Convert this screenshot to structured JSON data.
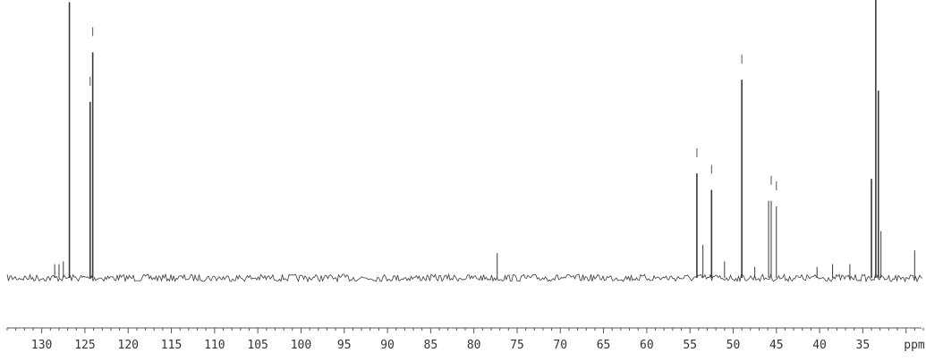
{
  "chart_data": {
    "type": "line",
    "title": "",
    "xlabel": "ppm",
    "ylabel": "",
    "x_axis": {
      "range": [
        134,
        28
      ],
      "reversed": true,
      "major_tick_step": 5,
      "minor_tick_step": 1
    },
    "tick_labels": [
      "130",
      "125",
      "120",
      "115",
      "110",
      "105",
      "100",
      "95",
      "90",
      "85",
      "80",
      "75",
      "70",
      "65",
      "60",
      "55",
      "50",
      "45",
      "40",
      "35"
    ],
    "tick_values": [
      130,
      125,
      120,
      115,
      110,
      105,
      100,
      95,
      90,
      85,
      80,
      75,
      70,
      65,
      60,
      55,
      50,
      45,
      40,
      35
    ],
    "unit_label": "ppm",
    "peak_markers": [
      126.8,
      124.1,
      124.4,
      54.2,
      52.5,
      49.0,
      45.6,
      45.0,
      33.5
    ],
    "peaks": [
      {
        "ppm": 126.8,
        "intensity": 1.0
      },
      {
        "ppm": 124.4,
        "intensity": 0.64
      },
      {
        "ppm": 124.1,
        "intensity": 0.82
      },
      {
        "ppm": 128.5,
        "intensity": 0.05
      },
      {
        "ppm": 128.0,
        "intensity": 0.05
      },
      {
        "ppm": 127.5,
        "intensity": 0.06
      },
      {
        "ppm": 77.3,
        "intensity": 0.09
      },
      {
        "ppm": 54.2,
        "intensity": 0.38
      },
      {
        "ppm": 53.5,
        "intensity": 0.12
      },
      {
        "ppm": 52.5,
        "intensity": 0.32
      },
      {
        "ppm": 51.0,
        "intensity": 0.06
      },
      {
        "ppm": 49.0,
        "intensity": 0.72
      },
      {
        "ppm": 47.5,
        "intensity": 0.04
      },
      {
        "ppm": 45.9,
        "intensity": 0.28
      },
      {
        "ppm": 45.6,
        "intensity": 0.28
      },
      {
        "ppm": 45.0,
        "intensity": 0.26
      },
      {
        "ppm": 40.3,
        "intensity": 0.04
      },
      {
        "ppm": 38.5,
        "intensity": 0.05
      },
      {
        "ppm": 36.5,
        "intensity": 0.05
      },
      {
        "ppm": 34.0,
        "intensity": 0.36
      },
      {
        "ppm": 33.5,
        "intensity": 1.05
      },
      {
        "ppm": 33.2,
        "intensity": 0.68
      },
      {
        "ppm": 32.9,
        "intensity": 0.17
      },
      {
        "ppm": 29.0,
        "intensity": 0.1
      }
    ],
    "grid": false,
    "colors": {
      "trace": "#3a3a3a",
      "axis": "#555555",
      "background": "#ffffff"
    }
  }
}
